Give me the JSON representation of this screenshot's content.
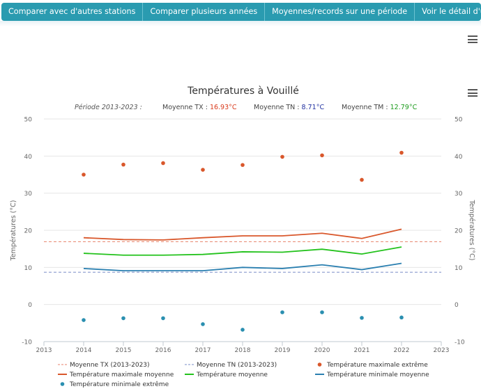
{
  "tabs": [
    {
      "label": "Comparer avec d'autres stations"
    },
    {
      "label": "Comparer plusieurs années"
    },
    {
      "label": "Moyennes/records sur une période"
    },
    {
      "label": "Voir le détail d'une année"
    }
  ],
  "chart_data": {
    "type": "line",
    "title": "Températures à Vouillé",
    "subtitle": {
      "period": "Période 2013-2023 :",
      "tx_label": "Moyenne TX : ",
      "tx_value": "16.93°C",
      "tn_label": "Moyenne TN : ",
      "tn_value": "8.71°C",
      "tm_label": "Moyenne TM : ",
      "tm_value": "12.79°C"
    },
    "ylabel_left": "Températures (°C)",
    "ylabel_right": "Températures (°C)",
    "xlim": [
      2013,
      2023
    ],
    "ylim": [
      -10,
      50
    ],
    "x_ticks": [
      "2013",
      "2014",
      "2015",
      "2016",
      "2017",
      "2018",
      "2019",
      "2020",
      "2021",
      "2022",
      "2023"
    ],
    "y_ticks": [
      "-10",
      "0",
      "10",
      "20",
      "30",
      "40",
      "50"
    ],
    "grid": true,
    "reference_lines": [
      {
        "name": "Moyenne TX (2013-2023)",
        "value": 16.93,
        "color": "#e8826a"
      },
      {
        "name": "Moyenne TN (2013-2023)",
        "value": 8.71,
        "color": "#7a8ec8"
      }
    ],
    "series": [
      {
        "name": "Température maximale extrême",
        "kind": "scatter",
        "color": "#d9572b",
        "x": [
          2014,
          2015,
          2016,
          2017,
          2018,
          2019,
          2020,
          2021,
          2022
        ],
        "values": [
          35.0,
          37.7,
          38.1,
          36.3,
          37.6,
          39.8,
          40.2,
          33.6,
          40.9
        ]
      },
      {
        "name": "Température maximale moyenne",
        "kind": "line",
        "color": "#d9572b",
        "x": [
          2014,
          2015,
          2016,
          2017,
          2018,
          2019,
          2020,
          2021,
          2022
        ],
        "values": [
          18.0,
          17.5,
          17.4,
          18.0,
          18.5,
          18.5,
          19.2,
          17.8,
          20.3
        ]
      },
      {
        "name": "Température moyenne",
        "kind": "line",
        "color": "#23c21c",
        "x": [
          2014,
          2015,
          2016,
          2017,
          2018,
          2019,
          2020,
          2021,
          2022
        ],
        "values": [
          13.8,
          13.3,
          13.3,
          13.5,
          14.2,
          14.1,
          14.9,
          13.6,
          15.5
        ]
      },
      {
        "name": "Température minimale moyenne",
        "kind": "line",
        "color": "#2a7fb0",
        "x": [
          2014,
          2015,
          2016,
          2017,
          2018,
          2019,
          2020,
          2021,
          2022
        ],
        "values": [
          9.7,
          9.1,
          9.1,
          9.1,
          10.0,
          9.7,
          10.7,
          9.4,
          11.1
        ]
      },
      {
        "name": "Température minimale extrême",
        "kind": "scatter",
        "color": "#2a8fb0",
        "x": [
          2014,
          2015,
          2016,
          2017,
          2018,
          2019,
          2020,
          2021,
          2022
        ],
        "values": [
          -4.2,
          -3.7,
          -3.7,
          -5.3,
          -6.8,
          -2.1,
          -2.1,
          -3.6,
          -3.5
        ]
      }
    ],
    "legend": [
      {
        "label": "Moyenne TX (2013-2023)",
        "symbol": "dash",
        "color": "#e8826a"
      },
      {
        "label": "Moyenne TN (2013-2023)",
        "symbol": "dash",
        "color": "#7a8ec8"
      },
      {
        "label": "Température maximale extrême",
        "symbol": "dot",
        "color": "#d9572b"
      },
      {
        "label": "Température maximale moyenne",
        "symbol": "line",
        "color": "#d9572b"
      },
      {
        "label": "Température moyenne",
        "symbol": "line",
        "color": "#23c21c"
      },
      {
        "label": "Température minimale moyenne",
        "symbol": "line",
        "color": "#2a7fb0"
      },
      {
        "label": "Température minimale extrême",
        "symbol": "dot",
        "color": "#2a8fb0"
      }
    ],
    "legend_placement": "bottom"
  }
}
